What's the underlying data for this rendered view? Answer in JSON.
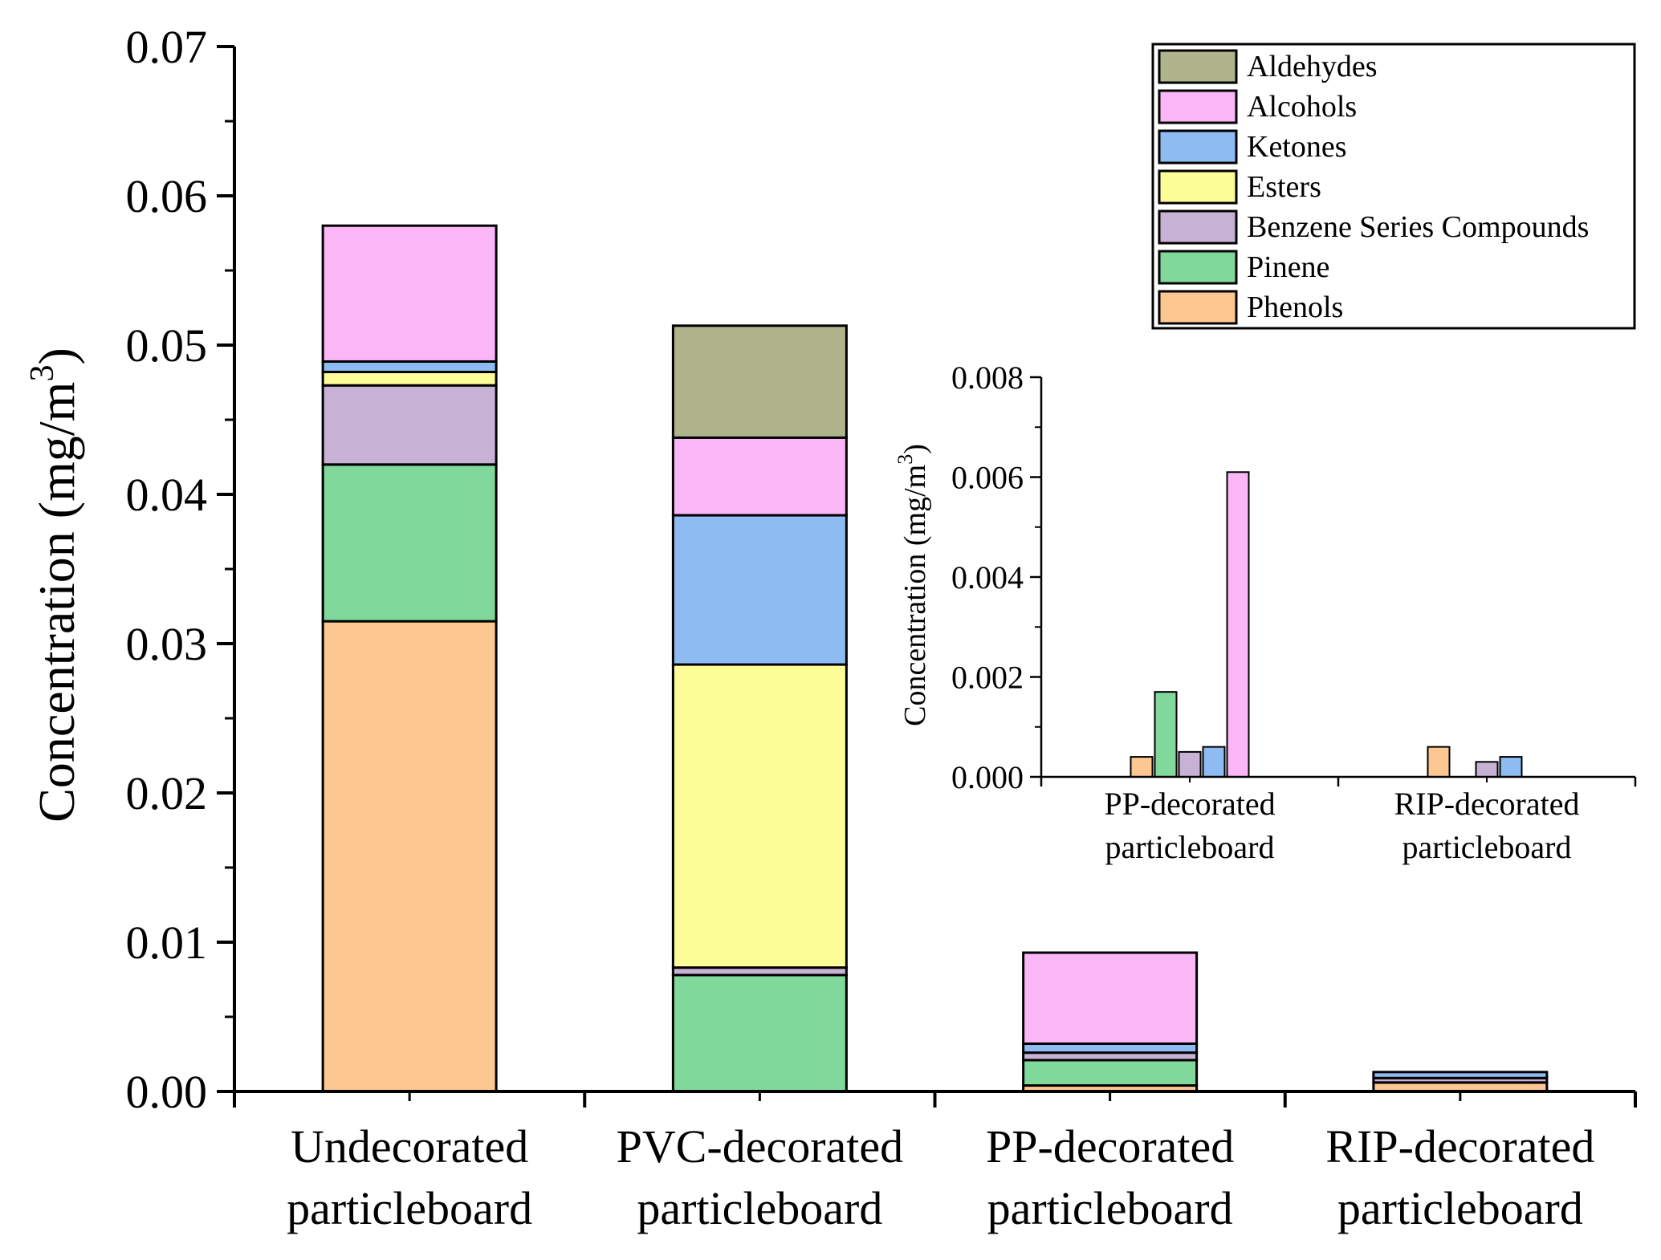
{
  "colors": {
    "Aldehydes": "#b0b48c",
    "Alcohols": "#fbb6f8",
    "Ketones": "#8dbbf2",
    "Esters": "#fdfd98",
    "Benzene Series Compounds": "#c7b2d6",
    "Pinene": "#80d99b",
    "Phenols": "#fdc792"
  },
  "chart_data": [
    {
      "type": "bar",
      "stacked": true,
      "ylabel": "Concentration (mg/m",
      "ylabel_sup": "3",
      "ylabel_close": ")",
      "ylim": [
        0,
        0.07
      ],
      "yticks": [
        "0.00",
        "0.01",
        "0.02",
        "0.03",
        "0.04",
        "0.05",
        "0.06",
        "0.07"
      ],
      "categories": [
        [
          "Undecorated",
          "particleboard"
        ],
        [
          "PVC-decorated",
          "particleboard"
        ],
        [
          "PP-decorated",
          "particleboard"
        ],
        [
          "RIP-decorated",
          "particleboard"
        ]
      ],
      "legend_order": [
        "Aldehydes",
        "Alcohols",
        "Ketones",
        "Esters",
        "Benzene Series Compounds",
        "Pinene",
        "Phenols"
      ],
      "legend_position": "top-right",
      "stack_order": [
        "Phenols",
        "Pinene",
        "Benzene Series Compounds",
        "Esters",
        "Ketones",
        "Alcohols",
        "Aldehydes"
      ],
      "series": [
        {
          "name": "Phenols",
          "values": [
            0.0315,
            0.0,
            0.0004,
            0.0006
          ]
        },
        {
          "name": "Pinene",
          "values": [
            0.0105,
            0.0078,
            0.0017,
            0.0
          ]
        },
        {
          "name": "Benzene Series Compounds",
          "values": [
            0.0053,
            0.0005,
            0.0005,
            0.0003
          ]
        },
        {
          "name": "Esters",
          "values": [
            0.0009,
            0.0203,
            0.0,
            0.0
          ]
        },
        {
          "name": "Ketones",
          "values": [
            0.0007,
            0.01,
            0.0006,
            0.0004
          ]
        },
        {
          "name": "Alcohols",
          "values": [
            0.0091,
            0.0052,
            0.0061,
            0.0
          ]
        },
        {
          "name": "Aldehydes",
          "values": [
            0.0,
            0.0075,
            0.0,
            0.0
          ]
        }
      ]
    },
    {
      "type": "bar",
      "inset": true,
      "grouped": true,
      "ylabel": "Concentration (mg/m",
      "ylabel_sup": "3",
      "ylabel_close": ")",
      "ylim": [
        0,
        0.008
      ],
      "yticks": [
        "0.000",
        "0.002",
        "0.004",
        "0.006",
        "0.008"
      ],
      "categories": [
        [
          "PP-decorated",
          "particleboard"
        ],
        [
          "RIP-decorated",
          "particleboard"
        ]
      ],
      "bar_order": [
        "Phenols",
        "Pinene",
        "Benzene Series Compounds",
        "Ketones",
        "Alcohols"
      ],
      "series": [
        {
          "name": "Phenols",
          "values": [
            0.0004,
            0.0006
          ]
        },
        {
          "name": "Pinene",
          "values": [
            0.0017,
            0.0
          ]
        },
        {
          "name": "Benzene Series Compounds",
          "values": [
            0.0005,
            0.0003
          ]
        },
        {
          "name": "Ketones",
          "values": [
            0.0006,
            0.0004
          ]
        },
        {
          "name": "Alcohols",
          "values": [
            0.0061,
            0.0
          ]
        }
      ]
    }
  ]
}
